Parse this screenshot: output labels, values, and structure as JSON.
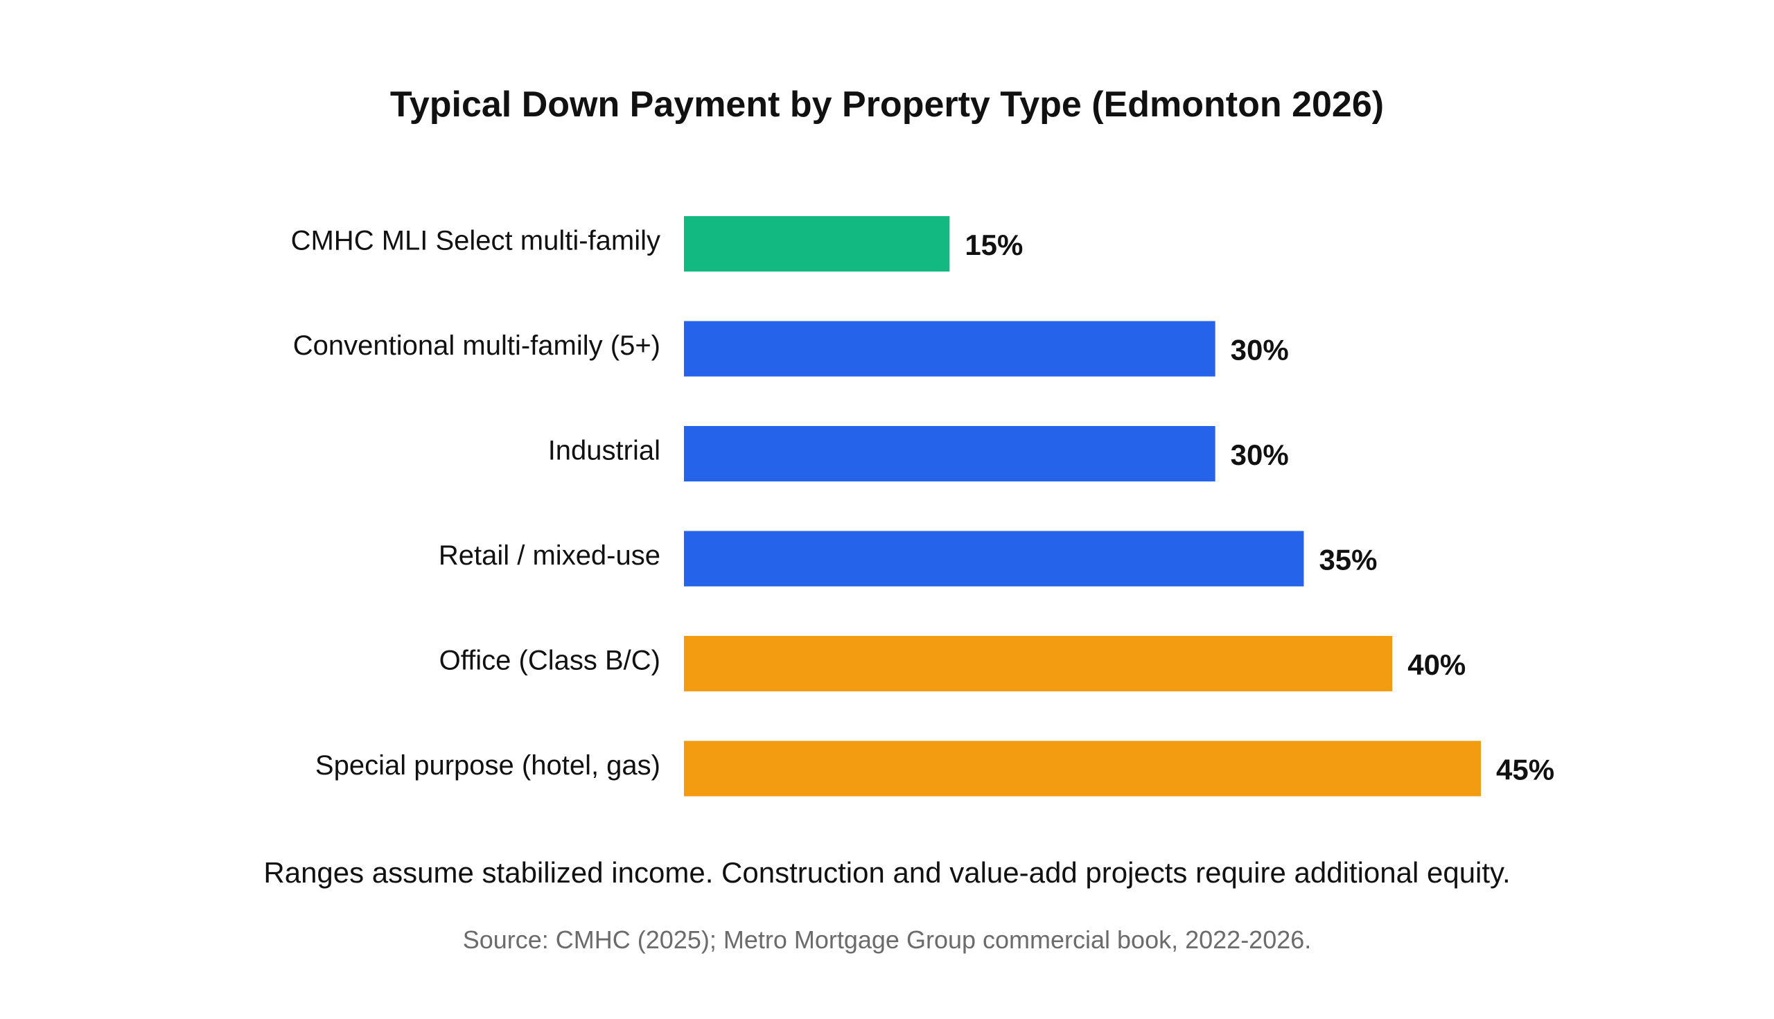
{
  "chart_data": {
    "type": "bar",
    "orientation": "horizontal",
    "title": "Typical Down Payment by Property Type (Edmonton 2026)",
    "categories": [
      "CMHC MLI Select multi-family",
      "Conventional multi-family (5+)",
      "Industrial",
      "Retail / mixed-use",
      "Office (Class B/C)",
      "Special purpose (hotel, gas)"
    ],
    "values": [
      15,
      30,
      30,
      35,
      40,
      45
    ],
    "value_labels": [
      "15%",
      "30%",
      "30%",
      "35%",
      "40%",
      "45%"
    ],
    "bar_colors": [
      "#12B981",
      "#2563EB",
      "#2563EB",
      "#2563EB",
      "#F39C12",
      "#F39C12"
    ],
    "unit": "%",
    "xlim": [
      0,
      45
    ],
    "grid": false,
    "legend": "none",
    "xlabel": "",
    "ylabel": ""
  },
  "note": "Ranges assume stabilized income. Construction and value-add projects require additional equity.",
  "source": "Source: CMHC (2025); Metro Mortgage Group commercial book, 2022-2026."
}
